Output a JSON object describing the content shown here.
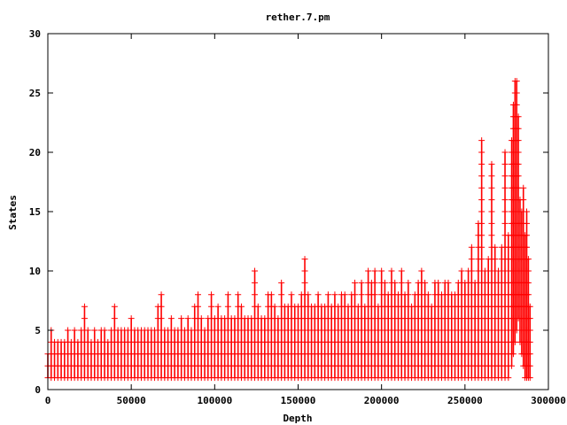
{
  "chart_data": {
    "type": "scatter",
    "title": "rether.7.pm",
    "xlabel": "Depth",
    "ylabel": "States",
    "xlim": [
      0,
      300000
    ],
    "ylim": [
      0,
      30
    ],
    "xticks": [
      "0",
      "50000",
      "100000",
      "150000",
      "200000",
      "250000",
      "300000"
    ],
    "yticks": [
      "0",
      "5",
      "10",
      "15",
      "20",
      "25",
      "30"
    ],
    "grid": false,
    "legend": "none",
    "marker": "plus",
    "color": "#ff0000",
    "series": [
      {
        "x": [
          0,
          2000,
          4000,
          6000,
          8000,
          10000,
          12000,
          14000,
          16000,
          18000,
          20000,
          22000,
          24000,
          26000,
          28000,
          30000,
          32000,
          34000,
          36000,
          38000,
          40000,
          42000,
          44000,
          46000,
          48000,
          50000,
          52000,
          54000,
          56000,
          58000,
          60000,
          62000,
          64000,
          66000,
          68000,
          70000,
          72000,
          74000,
          76000,
          78000,
          80000,
          82000,
          84000,
          86000,
          88000,
          90000,
          92000,
          94000,
          96000,
          98000,
          100000,
          102000,
          104000,
          106000,
          108000,
          110000,
          112000,
          114000,
          116000,
          118000,
          120000,
          122000,
          124000,
          126000,
          128000,
          130000,
          132000,
          134000,
          136000,
          138000,
          140000,
          142000,
          144000,
          146000,
          148000,
          150000,
          152000,
          154000,
          156000,
          158000,
          160000,
          162000,
          164000,
          166000,
          168000,
          170000,
          172000,
          174000,
          176000,
          178000,
          180000,
          182000,
          184000,
          186000,
          188000,
          190000,
          192000,
          194000,
          196000,
          198000,
          200000,
          202000,
          204000,
          206000,
          208000,
          210000,
          212000,
          214000,
          216000,
          218000,
          220000,
          222000,
          224000,
          226000,
          228000,
          230000,
          232000,
          234000,
          236000,
          238000,
          240000,
          242000,
          244000,
          246000,
          248000,
          250000,
          252000,
          254000,
          256000,
          258000,
          260000,
          262000,
          264000,
          266000,
          268000,
          270000,
          272000,
          274000,
          276000,
          278000,
          279000,
          280000,
          281000,
          282000,
          283000,
          284000,
          285000,
          286000,
          287000,
          288000,
          289000
        ],
        "ymin": [
          1,
          1,
          1,
          1,
          1,
          1,
          1,
          1,
          1,
          1,
          1,
          1,
          1,
          1,
          1,
          1,
          1,
          1,
          1,
          1,
          1,
          1,
          1,
          1,
          1,
          1,
          1,
          1,
          1,
          1,
          1,
          1,
          1,
          1,
          1,
          1,
          1,
          1,
          1,
          1,
          1,
          1,
          1,
          1,
          1,
          1,
          1,
          1,
          1,
          1,
          1,
          1,
          1,
          1,
          1,
          1,
          1,
          1,
          1,
          1,
          1,
          1,
          1,
          1,
          1,
          1,
          1,
          1,
          1,
          1,
          1,
          1,
          1,
          1,
          1,
          1,
          1,
          1,
          1,
          1,
          1,
          1,
          1,
          1,
          1,
          1,
          1,
          1,
          1,
          1,
          1,
          1,
          1,
          1,
          1,
          1,
          1,
          1,
          1,
          1,
          1,
          1,
          1,
          1,
          1,
          1,
          1,
          1,
          1,
          1,
          1,
          1,
          1,
          1,
          1,
          1,
          1,
          1,
          1,
          1,
          1,
          1,
          1,
          1,
          1,
          1,
          1,
          1,
          1,
          1,
          1,
          1,
          1,
          1,
          1,
          1,
          1,
          1,
          1,
          2,
          3,
          4,
          5,
          6,
          4,
          3,
          2,
          1,
          1,
          1,
          1
        ],
        "ymax": [
          3,
          5,
          4,
          4,
          4,
          4,
          5,
          4,
          5,
          4,
          5,
          7,
          5,
          4,
          5,
          4,
          5,
          5,
          4,
          5,
          7,
          5,
          5,
          5,
          5,
          6,
          5,
          5,
          5,
          5,
          5,
          5,
          5,
          7,
          8,
          5,
          5,
          6,
          5,
          5,
          6,
          5,
          6,
          5,
          7,
          8,
          6,
          5,
          6,
          8,
          6,
          7,
          6,
          6,
          8,
          6,
          6,
          8,
          7,
          6,
          6,
          6,
          10,
          7,
          6,
          6,
          8,
          8,
          7,
          6,
          9,
          7,
          7,
          8,
          7,
          7,
          8,
          11,
          8,
          7,
          7,
          8,
          7,
          7,
          8,
          7,
          8,
          7,
          8,
          8,
          7,
          8,
          9,
          7,
          9,
          7,
          10,
          9,
          10,
          7,
          10,
          9,
          8,
          10,
          9,
          8,
          10,
          8,
          9,
          7,
          8,
          9,
          10,
          9,
          8,
          7,
          9,
          9,
          8,
          9,
          9,
          8,
          8,
          9,
          10,
          9,
          10,
          12,
          9,
          14,
          21,
          10,
          11,
          19,
          12,
          10,
          12,
          20,
          13,
          21,
          24,
          26,
          26,
          23,
          16,
          15,
          17,
          13,
          15,
          11,
          7
        ]
      }
    ]
  }
}
